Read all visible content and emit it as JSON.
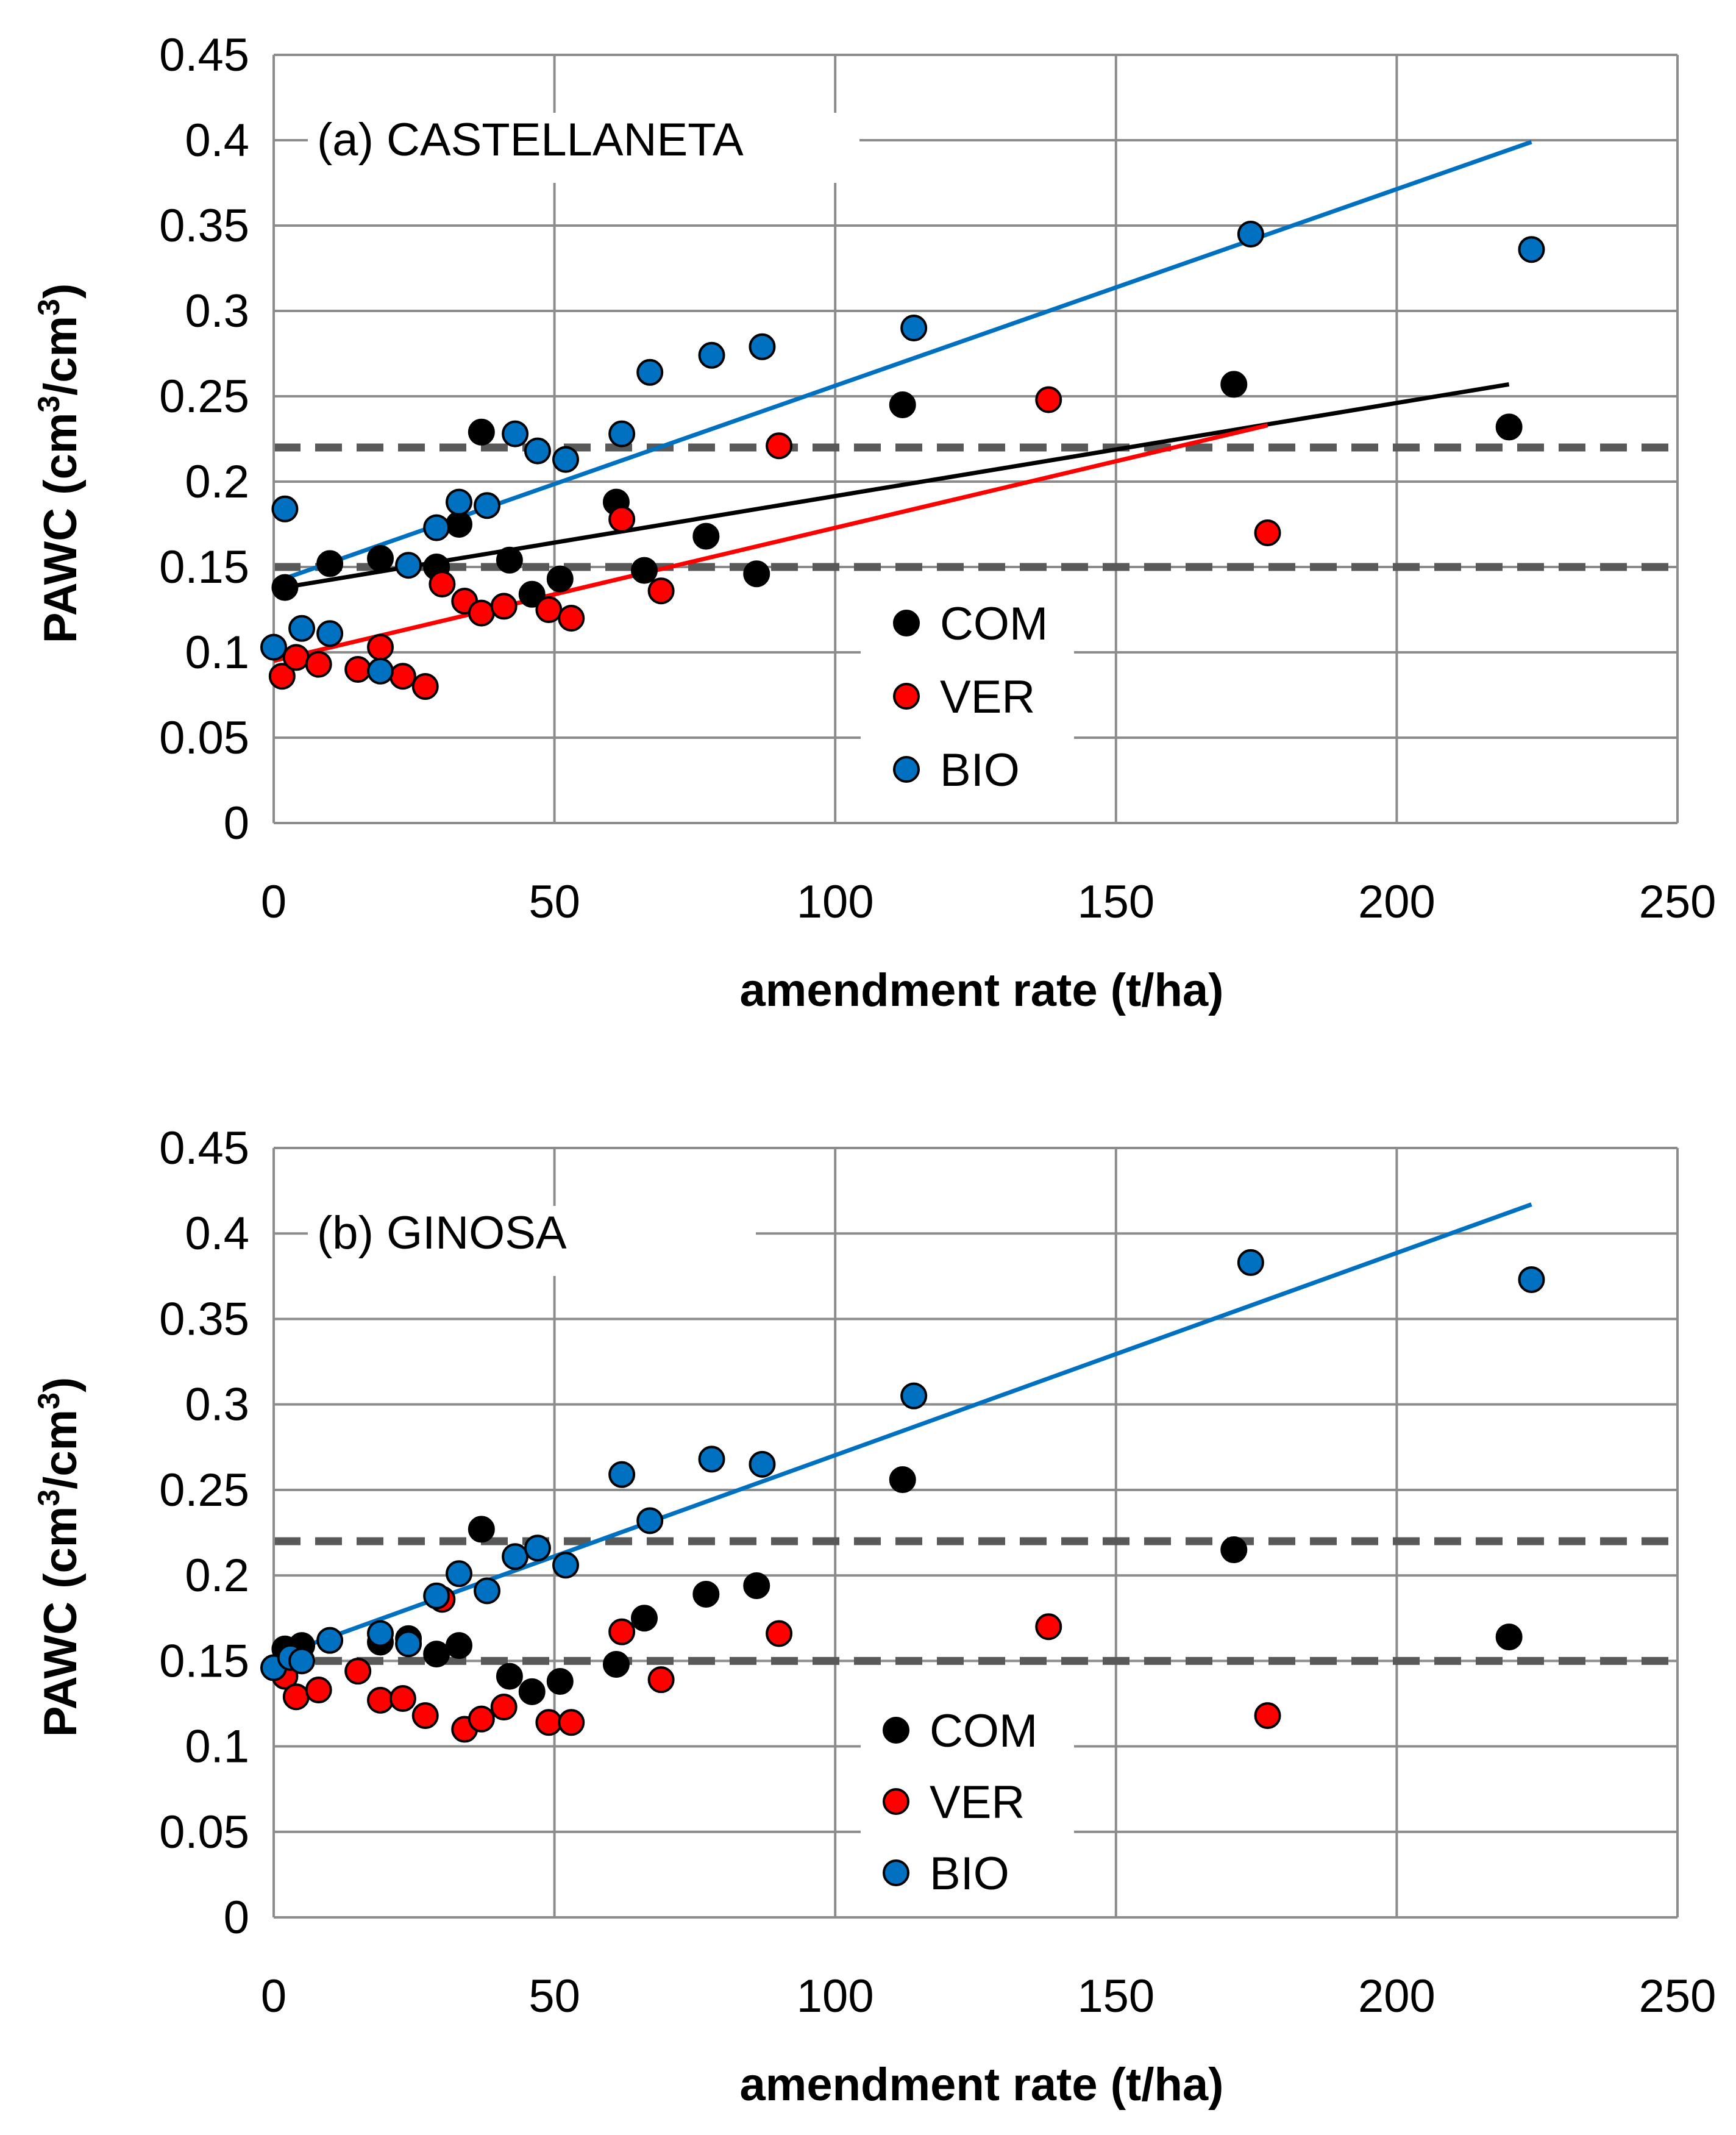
{
  "chart_data": [
    {
      "type": "scatter",
      "title": "(a) CASTELLANETA",
      "xlabel": "amendment rate (t/ha)",
      "ylabel_main": "PAWC (cm",
      "ylabel_sup1": "3",
      "ylabel_mid": "/cm",
      "ylabel_sup2": "3",
      "ylabel_end": ")",
      "xlim": [
        0,
        250
      ],
      "ylim": [
        0,
        0.45
      ],
      "xticks": [
        0,
        50,
        100,
        150,
        200,
        250
      ],
      "xtick_labels": [
        "0",
        "50",
        "100",
        "150",
        "200",
        "250"
      ],
      "yticks": [
        0,
        0.05,
        0.1,
        0.15,
        0.2,
        0.25,
        0.3,
        0.35,
        0.4,
        0.45
      ],
      "ytick_labels": [
        "0",
        "0.05",
        "0.1",
        "0.15",
        "0.2",
        "0.25",
        "0.3",
        "0.35",
        "0.4",
        "0.45"
      ],
      "grid": true,
      "legend_position": "center-right",
      "reference_lines": [
        0.15,
        0.22
      ],
      "series": [
        {
          "name": "COM",
          "color": "#000000",
          "x": [
            2,
            10,
            19,
            29,
            33,
            37,
            42,
            46,
            51,
            61,
            66,
            77,
            86,
            112,
            171,
            220
          ],
          "y": [
            0.138,
            0.152,
            0.155,
            0.15,
            0.175,
            0.229,
            0.154,
            0.134,
            0.143,
            0.188,
            0.148,
            0.168,
            0.146,
            0.245,
            0.257,
            0.232
          ],
          "trend": [
            [
              0,
              0.137
            ],
            [
              220,
              0.257
            ]
          ]
        },
        {
          "name": "VER",
          "color": "#ff0000",
          "x": [
            1.5,
            4,
            8,
            15,
            19,
            23,
            27,
            30,
            34,
            37,
            41,
            49,
            53,
            62,
            69,
            90,
            138,
            177
          ],
          "y": [
            0.086,
            0.097,
            0.093,
            0.09,
            0.103,
            0.086,
            0.08,
            0.14,
            0.13,
            0.123,
            0.127,
            0.125,
            0.12,
            0.178,
            0.136,
            0.221,
            0.248,
            0.17
          ],
          "trend": [
            [
              0,
              0.095
            ],
            [
              177,
              0.233
            ]
          ]
        },
        {
          "name": "BIO",
          "color": "#0070c0",
          "x": [
            0,
            2,
            5,
            10,
            19,
            24,
            29,
            33,
            38,
            43,
            47,
            52,
            62,
            67,
            78,
            87,
            114,
            174,
            224
          ],
          "y": [
            0.103,
            0.184,
            0.114,
            0.111,
            0.089,
            0.151,
            0.173,
            0.188,
            0.186,
            0.228,
            0.218,
            0.213,
            0.228,
            0.264,
            0.274,
            0.279,
            0.29,
            0.345,
            0.336
          ],
          "trend": [
            [
              0,
              0.141
            ],
            [
              224,
              0.399
            ]
          ]
        }
      ]
    },
    {
      "type": "scatter",
      "title": "(b) GINOSA",
      "xlabel": "amendment rate (t/ha)",
      "ylabel_main": "PAWC (cm",
      "ylabel_sup1": "3",
      "ylabel_mid": "/cm",
      "ylabel_sup2": "3",
      "ylabel_end": ")",
      "xlim": [
        0,
        250
      ],
      "ylim": [
        0,
        0.45
      ],
      "xticks": [
        0,
        50,
        100,
        150,
        200,
        250
      ],
      "xtick_labels": [
        "0",
        "50",
        "100",
        "150",
        "200",
        "250"
      ],
      "yticks": [
        0,
        0.05,
        0.1,
        0.15,
        0.2,
        0.25,
        0.3,
        0.35,
        0.4,
        0.45
      ],
      "ytick_labels": [
        "0",
        "0.05",
        "0.1",
        "0.15",
        "0.2",
        "0.25",
        "0.3",
        "0.35",
        "0.4",
        "0.45"
      ],
      "grid": true,
      "legend_position": "center-right",
      "reference_lines": [
        0.15,
        0.22
      ],
      "series": [
        {
          "name": "COM",
          "color": "#000000",
          "x": [
            2,
            5,
            19,
            24,
            29,
            33,
            37,
            42,
            46,
            51,
            61,
            66,
            77,
            86,
            112,
            171,
            220
          ],
          "y": [
            0.157,
            0.159,
            0.161,
            0.163,
            0.154,
            0.159,
            0.227,
            0.141,
            0.132,
            0.138,
            0.148,
            0.175,
            0.189,
            0.194,
            0.256,
            0.215,
            0.164
          ],
          "trend": null
        },
        {
          "name": "VER",
          "color": "#ff0000",
          "x": [
            2,
            4,
            8,
            15,
            19,
            23,
            27,
            30,
            34,
            37,
            41,
            49,
            53,
            62,
            69,
            90,
            138,
            177
          ],
          "y": [
            0.141,
            0.129,
            0.133,
            0.144,
            0.127,
            0.128,
            0.118,
            0.186,
            0.11,
            0.116,
            0.123,
            0.114,
            0.114,
            0.167,
            0.139,
            0.166,
            0.17,
            0.118
          ],
          "trend": null
        },
        {
          "name": "BIO",
          "color": "#0070c0",
          "x": [
            0,
            3,
            5,
            10,
            19,
            24,
            29,
            33,
            38,
            43,
            47,
            52,
            62,
            67,
            78,
            87,
            114,
            174,
            224
          ],
          "y": [
            0.146,
            0.152,
            0.15,
            0.162,
            0.166,
            0.16,
            0.188,
            0.201,
            0.191,
            0.211,
            0.216,
            0.206,
            0.259,
            0.232,
            0.268,
            0.265,
            0.305,
            0.383,
            0.373
          ],
          "trend": [
            [
              0,
              0.152
            ],
            [
              224,
              0.417
            ]
          ]
        }
      ]
    }
  ]
}
